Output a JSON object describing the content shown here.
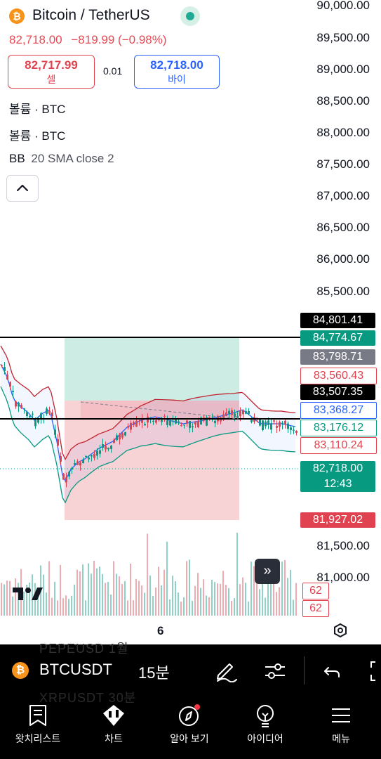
{
  "header": {
    "symbol_title": "Bitcoin / TetherUS",
    "last_price": "82,718.00",
    "change": "−819.99",
    "change_pct": "(−0.98%)",
    "sell_price": "82,717.99",
    "sell_label": "셀",
    "spread": "0.01",
    "buy_price": "82,718.00",
    "buy_label": "바이"
  },
  "indicators": [
    {
      "name": "볼륨",
      "params": "BTC"
    },
    {
      "name": "볼륨",
      "params": "BTC"
    },
    {
      "name": "BB",
      "params": "20 SMA close 2"
    }
  ],
  "price_axis": [
    "90,000.00",
    "89,500.00",
    "89,000.00",
    "88,500.00",
    "88,000.00",
    "87,500.00",
    "87,000.00",
    "86,500.00",
    "86,000.00",
    "85,500.00",
    "81,500.00",
    "81,000.00"
  ],
  "price_tags": [
    {
      "text": "84,801.41",
      "bg": "#000000",
      "fg": "#ffffff"
    },
    {
      "text": "84,774.67",
      "bg": "#089981",
      "fg": "#ffffff"
    },
    {
      "text": "83,798.71",
      "bg": "#787b86",
      "fg": "#ffffff"
    },
    {
      "text": "83,560.43",
      "bg": "#ffffff",
      "fg": "#e0434f"
    },
    {
      "text": "83,507.35",
      "bg": "#000000",
      "fg": "#ffffff"
    },
    {
      "text": "83,368.27",
      "bg": "#ffffff",
      "fg": "#2962ff"
    },
    {
      "text": "83,176.12",
      "bg": "#ffffff",
      "fg": "#089981"
    },
    {
      "text": "83,110.24",
      "bg": "#ffffff",
      "fg": "#e0434f"
    },
    {
      "text": "82,718.00",
      "time": "12:43",
      "bg": "#089981",
      "fg": "#ffffff"
    },
    {
      "text": "81,927.02",
      "bg": "#e0434f",
      "fg": "#ffffff"
    }
  ],
  "volume_tags": [
    "62",
    "62"
  ],
  "x_axis": {
    "label": "6"
  },
  "symbol_bar": {
    "symbol": "BTCUSDT",
    "timeframe": "15분",
    "ghost_rows": [
      "PEPEUSD    1월",
      "XRPUSDT    30분"
    ]
  },
  "nav": [
    {
      "label": "왓치리스트",
      "icon": "watchlist-icon"
    },
    {
      "label": "차트",
      "icon": "chart-icon"
    },
    {
      "label": "알아 보기",
      "icon": "compass-icon"
    },
    {
      "label": "아이디어",
      "icon": "lightbulb-icon"
    },
    {
      "label": "메뉴",
      "icon": "menu-icon"
    }
  ],
  "colors": {
    "up": "#089981",
    "down": "#e0434f",
    "bb_basis": "#2962ff",
    "bb_upper": "#c2242f",
    "bb_lower": "#089981",
    "profit_zone": "#cdece3",
    "loss_zone": "#f8d3d6"
  }
}
